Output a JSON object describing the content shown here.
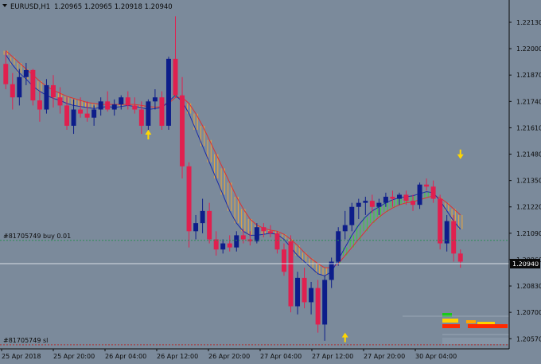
{
  "symbol_info": {
    "symbol": "EURUSD,H1",
    "ohlc_text": "1.20965 1.20965 1.20918 1.20940"
  },
  "orders": [
    {
      "label": "#81705749 buy 0.01",
      "price": 1.21055,
      "color": "#2e8b57"
    },
    {
      "label": "#81705749 sl",
      "price": 1.2054,
      "color": "#b03030"
    }
  ],
  "current_price": {
    "label": "1.20940",
    "value": 1.2094
  },
  "chart_data": {
    "type": "candlestick",
    "symbol": "EURUSD",
    "timeframe": "H1",
    "ylim": [
      1.2052,
      1.2224
    ],
    "y_ticks": [
      "1.22130",
      "1.22000",
      "1.21870",
      "1.21740",
      "1.21610",
      "1.21480",
      "1.21350",
      "1.21220",
      "1.21090",
      "1.20960",
      "1.20830",
      "1.20700",
      "1.20570"
    ],
    "x_ticks": [
      "25 Apr 2018",
      "25 Apr 20:00",
      "26 Apr 04:00",
      "26 Apr 12:00",
      "26 Apr 20:00",
      "27 Apr 04:00",
      "27 Apr 12:00",
      "27 Apr 20:00",
      "30 Apr 04:00"
    ],
    "colors": {
      "background": "#7b8a9b",
      "bull": "#0d1d8a",
      "bear": "#e0204f",
      "grid": "#8fa0b2",
      "text": "#0a0a0a",
      "arrow": "#ffd700"
    },
    "candles": [
      [
        1.21925,
        1.21985,
        1.218,
        1.21825
      ],
      [
        1.21825,
        1.2188,
        1.217,
        1.2176
      ],
      [
        1.2176,
        1.219,
        1.2172,
        1.2186
      ],
      [
        1.2186,
        1.2193,
        1.2182,
        1.21895
      ],
      [
        1.21895,
        1.219,
        1.2172,
        1.21745
      ],
      [
        1.21745,
        1.2179,
        1.2164,
        1.217
      ],
      [
        1.217,
        1.2185,
        1.2168,
        1.2182
      ],
      [
        1.2182,
        1.2187,
        1.2171,
        1.2176
      ],
      [
        1.2176,
        1.2181,
        1.2168,
        1.2172
      ],
      [
        1.2172,
        1.2176,
        1.216,
        1.2162
      ],
      [
        1.2162,
        1.2175,
        1.2158,
        1.217
      ],
      [
        1.217,
        1.2176,
        1.2166,
        1.2168
      ],
      [
        1.2168,
        1.2174,
        1.2164,
        1.2166
      ],
      [
        1.2166,
        1.2172,
        1.2162,
        1.217
      ],
      [
        1.217,
        1.2176,
        1.2167,
        1.2174
      ],
      [
        1.2174,
        1.2179,
        1.2169,
        1.217
      ],
      [
        1.217,
        1.2175,
        1.2167,
        1.21725
      ],
      [
        1.21725,
        1.2177,
        1.217,
        1.2176
      ],
      [
        1.2176,
        1.2179,
        1.217,
        1.2172
      ],
      [
        1.2172,
        1.2176,
        1.2168,
        1.217
      ],
      [
        1.217,
        1.2174,
        1.2158,
        1.2162
      ],
      [
        1.2162,
        1.2175,
        1.216,
        1.2174
      ],
      [
        1.2174,
        1.218,
        1.217,
        1.2176
      ],
      [
        1.2176,
        1.2179,
        1.216,
        1.2162
      ],
      [
        1.2162,
        1.2196,
        1.216,
        1.2195
      ],
      [
        1.2195,
        1.2216,
        1.2176,
        1.2177
      ],
      [
        1.2177,
        1.2186,
        1.2136,
        1.2142
      ],
      [
        1.2142,
        1.2144,
        1.2102,
        1.211
      ],
      [
        1.211,
        1.2118,
        1.2106,
        1.2114
      ],
      [
        1.2114,
        1.2126,
        1.2109,
        1.212
      ],
      [
        1.212,
        1.2124,
        1.2104,
        1.2106
      ],
      [
        1.2106,
        1.211,
        1.2098,
        1.2101
      ],
      [
        1.2101,
        1.2106,
        1.2099,
        1.2104
      ],
      [
        1.2104,
        1.2108,
        1.21,
        1.2102
      ],
      [
        1.2102,
        1.211,
        1.21,
        1.2108
      ],
      [
        1.2108,
        1.2111,
        1.2104,
        1.2106
      ],
      [
        1.2106,
        1.211,
        1.2103,
        1.2105
      ],
      [
        1.2105,
        1.2114,
        1.2104,
        1.2112
      ],
      [
        1.2112,
        1.2114,
        1.2107,
        1.211
      ],
      [
        1.211,
        1.2113,
        1.2107,
        1.2109
      ],
      [
        1.2109,
        1.211,
        1.2099,
        1.2101
      ],
      [
        1.2101,
        1.2104,
        1.2088,
        1.209
      ],
      [
        1.2105,
        1.2108,
        1.207,
        1.2073
      ],
      [
        1.2073,
        1.209,
        1.2069,
        1.2087
      ],
      [
        1.2087,
        1.2092,
        1.2072,
        1.2075
      ],
      [
        1.2075,
        1.2085,
        1.2069,
        1.2082
      ],
      [
        1.2082,
        1.2086,
        1.206,
        1.2064
      ],
      [
        1.2064,
        1.2088,
        1.2056,
        1.2086
      ],
      [
        1.2086,
        1.2097,
        1.2082,
        1.2095
      ],
      [
        1.2095,
        1.2112,
        1.2093,
        1.211
      ],
      [
        1.211,
        1.212,
        1.2106,
        1.2113
      ],
      [
        1.2113,
        1.2124,
        1.211,
        1.2122
      ],
      [
        1.2122,
        1.2126,
        1.2116,
        1.2124
      ],
      [
        1.2124,
        1.2127,
        1.2118,
        1.2125
      ],
      [
        1.2125,
        1.2128,
        1.2119,
        1.2122
      ],
      [
        1.2122,
        1.2126,
        1.2118,
        1.2124
      ],
      [
        1.2124,
        1.2129,
        1.2122,
        1.2127
      ],
      [
        1.2127,
        1.213,
        1.2122,
        1.2126
      ],
      [
        1.2126,
        1.2129,
        1.2123,
        1.2128
      ],
      [
        1.2128,
        1.213,
        1.2123,
        1.2125
      ],
      [
        1.2125,
        1.2128,
        1.212,
        1.2123
      ],
      [
        1.2123,
        1.2134,
        1.2121,
        1.2133
      ],
      [
        1.2133,
        1.2136,
        1.213,
        1.2132
      ],
      [
        1.2132,
        1.2135,
        1.2124,
        1.2126
      ],
      [
        1.2126,
        1.2128,
        1.2101,
        1.2104
      ],
      [
        1.2104,
        1.2118,
        1.21,
        1.2115
      ],
      [
        1.2115,
        1.2118,
        1.2095,
        1.2099
      ],
      [
        1.2099,
        1.2101,
        1.2092,
        1.2095
      ]
    ],
    "ma_fast": [
      1.2197,
      1.2192,
      1.2188,
      1.2185,
      1.21815,
      1.2179,
      1.2177,
      1.21755,
      1.21745,
      1.2173,
      1.2172,
      1.21715,
      1.2171,
      1.21705,
      1.2171,
      1.21715,
      1.2171,
      1.21715,
      1.2172,
      1.21715,
      1.2171,
      1.217,
      1.21705,
      1.2171,
      1.2174,
      1.2177,
      1.2174,
      1.2168,
      1.216,
      1.2152,
      1.2144,
      1.2136,
      1.2128,
      1.212,
      1.2114,
      1.211,
      1.2108,
      1.2108,
      1.21085,
      1.2109,
      1.21085,
      1.2106,
      1.2102,
      1.2098,
      1.2095,
      1.2092,
      1.2089,
      1.2088,
      1.209,
      1.2096,
      1.2102,
      1.2108,
      1.2113,
      1.2117,
      1.212,
      1.2122,
      1.2124,
      1.21255,
      1.21265,
      1.2127,
      1.21275,
      1.21285,
      1.21295,
      1.2129,
      1.2125,
      1.212,
      1.2115,
      1.2111
    ],
    "ma_slow": [
      1.2199,
      1.2196,
      1.2193,
      1.219,
      1.2187,
      1.2184,
      1.21815,
      1.21795,
      1.2178,
      1.21765,
      1.21755,
      1.21745,
      1.21735,
      1.2173,
      1.21725,
      1.21725,
      1.21725,
      1.21725,
      1.21725,
      1.21725,
      1.2172,
      1.21715,
      1.21712,
      1.21715,
      1.2173,
      1.2176,
      1.2176,
      1.2173,
      1.2168,
      1.2162,
      1.2155,
      1.2148,
      1.2141,
      1.2134,
      1.2127,
      1.2121,
      1.2116,
      1.2113,
      1.21115,
      1.21105,
      1.211,
      1.21085,
      1.2106,
      1.2103,
      1.20995,
      1.20965,
      1.2094,
      1.2092,
      1.2092,
      1.2094,
      1.2098,
      1.2102,
      1.2106,
      1.211,
      1.2114,
      1.2117,
      1.21195,
      1.21215,
      1.2123,
      1.2124,
      1.21245,
      1.21255,
      1.21265,
      1.21275,
      1.21265,
      1.2124,
      1.2121,
      1.2118
    ],
    "arrows": [
      {
        "index": 25,
        "dir": "down",
        "price": 1.2224
      },
      {
        "index": 21,
        "dir": "up",
        "price": 1.216
      },
      {
        "index": 67,
        "dir": "down",
        "price": 1.2144
      },
      {
        "index": 50,
        "dir": "up",
        "price": 1.206
      }
    ]
  }
}
